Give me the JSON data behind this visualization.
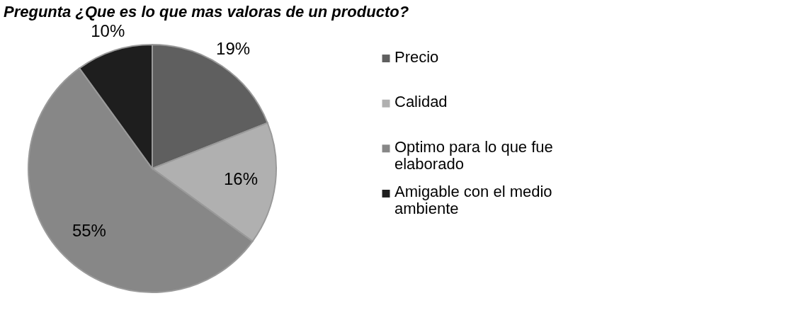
{
  "chart_data": {
    "type": "pie",
    "title": "Pregunta ¿Que es lo que mas valoras de un producto?",
    "categories": [
      "Precio",
      "Calidad",
      "Optimo para lo que fue elaborado",
      "Amigable con el medio ambiente"
    ],
    "values": [
      19,
      16,
      55,
      10
    ],
    "colors": [
      "#5f5f5f",
      "#b0b0b0",
      "#878787",
      "#1e1e1e"
    ],
    "value_labels": [
      "19%",
      "16%",
      "55%",
      "10%"
    ],
    "legend": "right"
  }
}
